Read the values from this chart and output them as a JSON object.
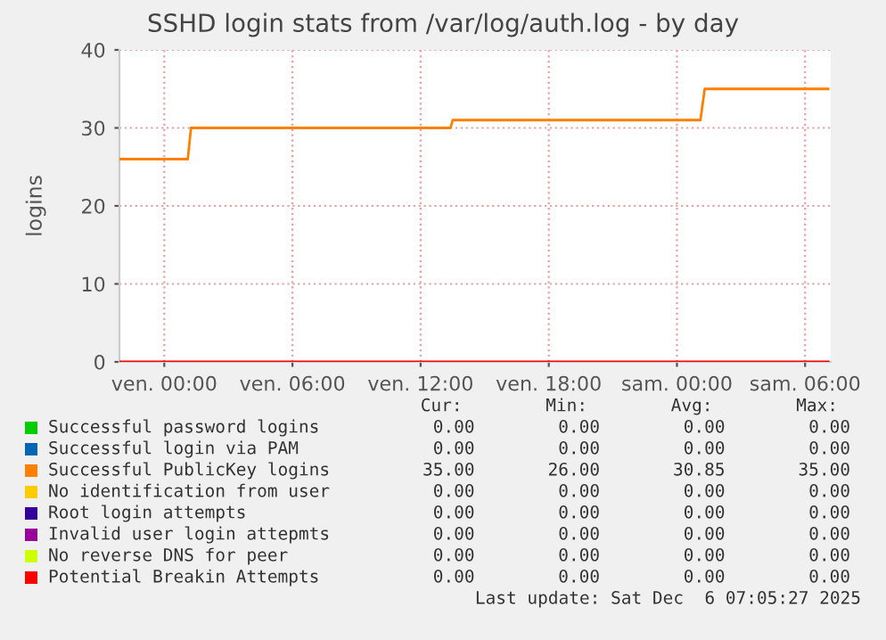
{
  "chart_data": {
    "type": "line",
    "title": "SSHD login stats from /var/log/auth.log - by day",
    "ylabel": "logins",
    "xlim": [
      "2025-12-04T21:54",
      "2025-12-06T07:12"
    ],
    "xticks": [
      {
        "value": "2025-12-05T00:00",
        "label": "ven. 00:00"
      },
      {
        "value": "2025-12-05T06:00",
        "label": "ven. 06:00"
      },
      {
        "value": "2025-12-05T12:00",
        "label": "ven. 12:00"
      },
      {
        "value": "2025-12-05T18:00",
        "label": "ven. 18:00"
      },
      {
        "value": "2025-12-06T00:00",
        "label": "sam. 00:00"
      },
      {
        "value": "2025-12-06T06:00",
        "label": "sam. 06:00"
      }
    ],
    "ylim": [
      0,
      40
    ],
    "yticks": [
      0,
      10,
      20,
      30,
      40
    ],
    "grid": true,
    "legend": "bottom",
    "line_style": "solid",
    "marker": "none",
    "series": [
      {
        "name": "Successful password logins",
        "color": "#00cc00"
      },
      {
        "name": "Successful login via PAM",
        "color": "#0066b3"
      },
      {
        "name": "Successful PublicKey logins",
        "color": "#ff8000",
        "x": [
          "2025-12-04T21:54",
          "2025-12-05T01:06",
          "2025-12-05T01:15",
          "2025-12-05T13:24",
          "2025-12-05T13:30",
          "2025-12-06T01:06",
          "2025-12-06T01:18",
          "2025-12-06T07:05"
        ],
        "values": [
          26,
          26,
          30,
          30,
          31,
          31,
          35,
          35
        ]
      },
      {
        "name": "No identification from user",
        "color": "#ffcc00"
      },
      {
        "name": "Root login attempts",
        "color": "#330099"
      },
      {
        "name": "Invalid user login attepmts",
        "color": "#990099"
      },
      {
        "name": "No reverse DNS for peer",
        "color": "#ccff00"
      },
      {
        "name": "Potential Breakin Attempts",
        "color": "#ff0000",
        "x": [
          "2025-12-04T21:54",
          "2025-12-06T07:05"
        ],
        "values": [
          0,
          0
        ]
      }
    ],
    "annotations": [
      "Cur:        Min:        Avg:        Max:",
      "0.00        0.00        0.00        0.00",
      "0.00        0.00        0.00        0.00",
      "35.00       26.00       30.85       35.00",
      "0.00        0.00        0.00        0.00",
      "0.00        0.00        0.00        0.00",
      "0.00        0.00        0.00        0.00",
      "0.00        0.00        0.00        0.00",
      "0.00        0.00        0.00        0.00",
      "Last update: Sat Dec  6 07:05:27 2025"
    ]
  }
}
